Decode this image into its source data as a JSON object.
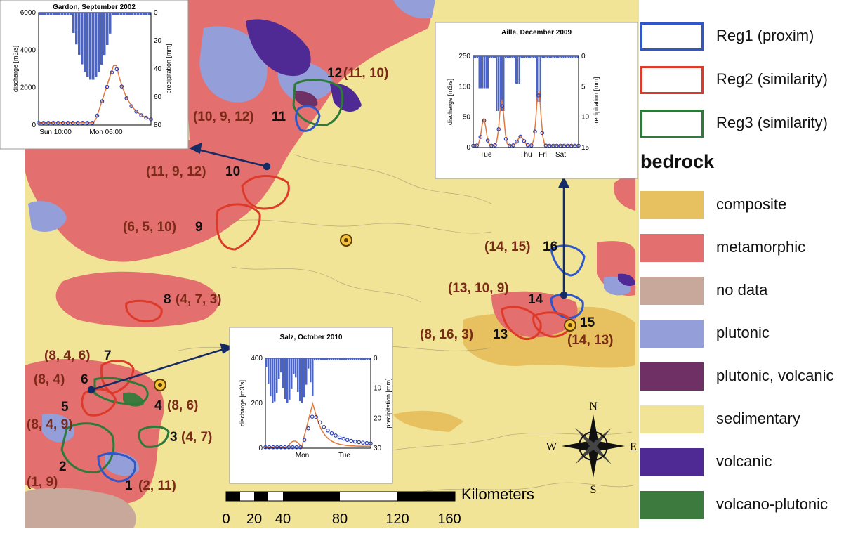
{
  "regions": [
    {
      "num": "1",
      "codes": "(2, 11)"
    },
    {
      "num": "2",
      "codes": "(1, 9)"
    },
    {
      "num": "3",
      "codes": "(4, 7)"
    },
    {
      "num": "4",
      "codes": "(8, 6)"
    },
    {
      "num": "5",
      "codes": "(8, 4, 9)"
    },
    {
      "num": "6",
      "codes": "(8, 4)"
    },
    {
      "num": "7",
      "codes": "(8, 4, 6)"
    },
    {
      "num": "8",
      "codes": "(4, 7, 3)"
    },
    {
      "num": "9",
      "codes": "(6, 5, 10)"
    },
    {
      "num": "10",
      "codes": "(11, 9, 12)"
    },
    {
      "num": "11",
      "codes": "(10, 9, 12)"
    },
    {
      "num": "12",
      "codes": "(11, 10)"
    },
    {
      "num": "13",
      "codes": "(8, 16, 3)"
    },
    {
      "num": "14",
      "codes": "(13, 10, 9)"
    },
    {
      "num": "15",
      "codes": "(14, 13)"
    },
    {
      "num": "16",
      "codes": "(14, 15)"
    }
  ],
  "insets": {
    "gardon": {
      "title": "Gardon, September 2002",
      "ylabel": "discharge [m3/s]",
      "y2label": "precipitation [mm]",
      "yticks": [
        "0",
        "2000",
        "4000",
        "6000"
      ],
      "y2ticks": [
        "0",
        "20",
        "40",
        "60",
        "80"
      ],
      "xticks": [
        "Sun 10:00",
        "Mon 06:00"
      ]
    },
    "aille": {
      "title": "Aille, December 2009",
      "ylabel": "discharge [m3/s]",
      "y2label": "precipitation [mm]",
      "yticks": [
        "0",
        "50",
        "150",
        "250"
      ],
      "y2ticks": [
        "0",
        "5",
        "10",
        "15"
      ],
      "xticks": [
        "Tue",
        "Thu",
        "Fri",
        "Sat"
      ]
    },
    "salz": {
      "title": "Salz, October 2010",
      "ylabel": "discharge [m3/s]",
      "y2label": "precipitation [mm]",
      "yticks": [
        "0",
        "200",
        "400"
      ],
      "y2ticks": [
        "0",
        "10",
        "20",
        "30"
      ],
      "xticks": [
        "Mon",
        "Tue"
      ]
    }
  },
  "scalebar": {
    "unit": "Kilometers",
    "ticks": [
      "0",
      "20",
      "40",
      "80",
      "120",
      "160"
    ]
  },
  "compass": {
    "n": "N",
    "s": "S",
    "e": "E",
    "w": "W"
  },
  "legend": {
    "regions": [
      {
        "label": "Reg1 (proxim)",
        "color": "#2f57c9"
      },
      {
        "label": "Reg2 (similarity)",
        "color": "#dd3a2a"
      },
      {
        "label": "Reg3 (similarity)",
        "color": "#2e7a3a"
      }
    ],
    "bedrock_title": "bedrock",
    "bedrock": [
      {
        "label": "composite",
        "color": "#e7c160"
      },
      {
        "label": "metamorphic",
        "color": "#e46f6f"
      },
      {
        "label": "no data",
        "color": "#c8a89a"
      },
      {
        "label": "plutonic",
        "color": "#949fd9"
      },
      {
        "label": "plutonic, volcanic",
        "color": "#6e3065"
      },
      {
        "label": "sedimentary",
        "color": "#f1e497"
      },
      {
        "label": "volcanic",
        "color": "#4f2a95"
      },
      {
        "label": "volcano-plutonic",
        "color": "#3c7a3e"
      }
    ]
  }
}
